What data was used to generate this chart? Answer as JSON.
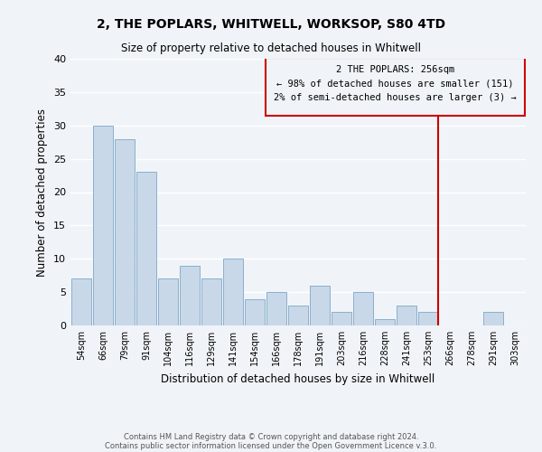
{
  "title": "2, THE POPLARS, WHITWELL, WORKSOP, S80 4TD",
  "subtitle": "Size of property relative to detached houses in Whitwell",
  "xlabel": "Distribution of detached houses by size in Whitwell",
  "ylabel": "Number of detached properties",
  "footer_line1": "Contains HM Land Registry data © Crown copyright and database right 2024.",
  "footer_line2": "Contains public sector information licensed under the Open Government Licence v.3.0.",
  "bin_labels": [
    "54sqm",
    "66sqm",
    "79sqm",
    "91sqm",
    "104sqm",
    "116sqm",
    "129sqm",
    "141sqm",
    "154sqm",
    "166sqm",
    "178sqm",
    "191sqm",
    "203sqm",
    "216sqm",
    "228sqm",
    "241sqm",
    "253sqm",
    "266sqm",
    "278sqm",
    "291sqm",
    "303sqm"
  ],
  "bar_values": [
    7,
    30,
    28,
    23,
    7,
    9,
    7,
    10,
    4,
    5,
    3,
    6,
    2,
    5,
    1,
    3,
    2,
    0,
    0,
    2,
    0
  ],
  "bar_color": "#c8d8e8",
  "bar_edge_color": "#8ab0cc",
  "ylim": [
    0,
    40
  ],
  "yticks": [
    0,
    5,
    10,
    15,
    20,
    25,
    30,
    35,
    40
  ],
  "vline_color": "#cc0000",
  "annotation_title": "2 THE POPLARS: 256sqm",
  "annotation_line1": "← 98% of detached houses are smaller (151)",
  "annotation_line2": "2% of semi-detached houses are larger (3) →",
  "annotation_box_color": "#cc0000",
  "bg_color": "#f0f4f8",
  "grid_color": "#ffffff"
}
